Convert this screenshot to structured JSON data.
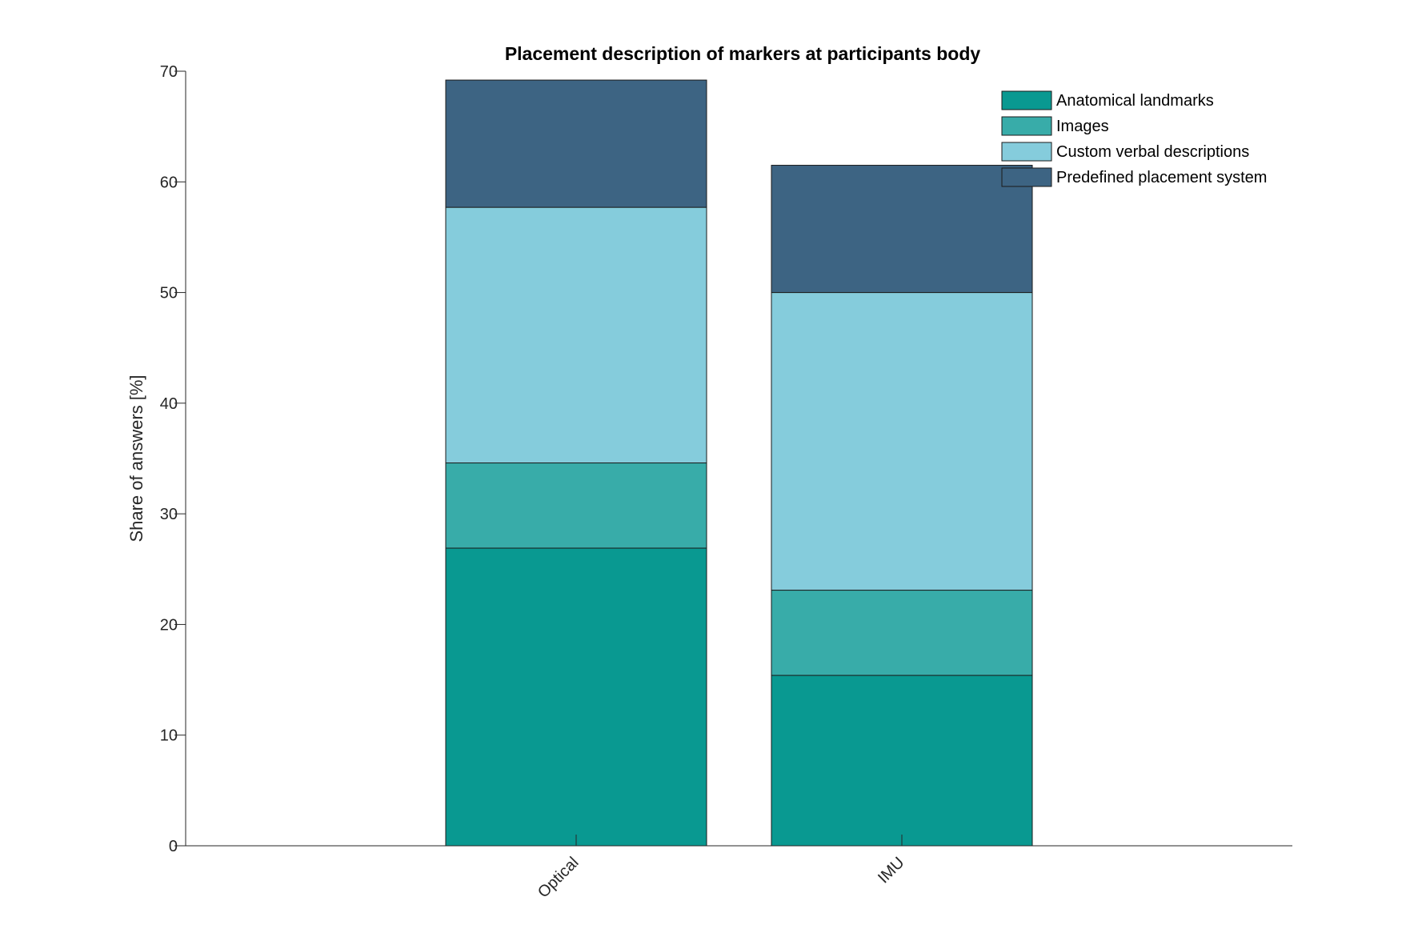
{
  "chart_data": {
    "type": "bar",
    "stacked": true,
    "title": "Placement description of markers at participants body",
    "xlabel": "",
    "ylabel": "Share of answers [%]",
    "ylim": [
      0,
      70
    ],
    "yticks": [
      0,
      10,
      20,
      30,
      40,
      50,
      60,
      70
    ],
    "categories": [
      "Optical",
      "IMU"
    ],
    "series": [
      {
        "name": "Anatomical landmarks",
        "color": "#099991",
        "values": [
          26.9,
          15.4
        ]
      },
      {
        "name": "Images",
        "color": "#38ACA9",
        "values": [
          7.7,
          7.7
        ]
      },
      {
        "name": "Custom verbal descriptions",
        "color": "#85CCDC",
        "values": [
          23.1,
          26.9
        ]
      },
      {
        "name": "Predefined placement system",
        "color": "#3D6483",
        "values": [
          11.5,
          11.5
        ]
      }
    ],
    "legend_position": "top-right",
    "grid": false
  }
}
